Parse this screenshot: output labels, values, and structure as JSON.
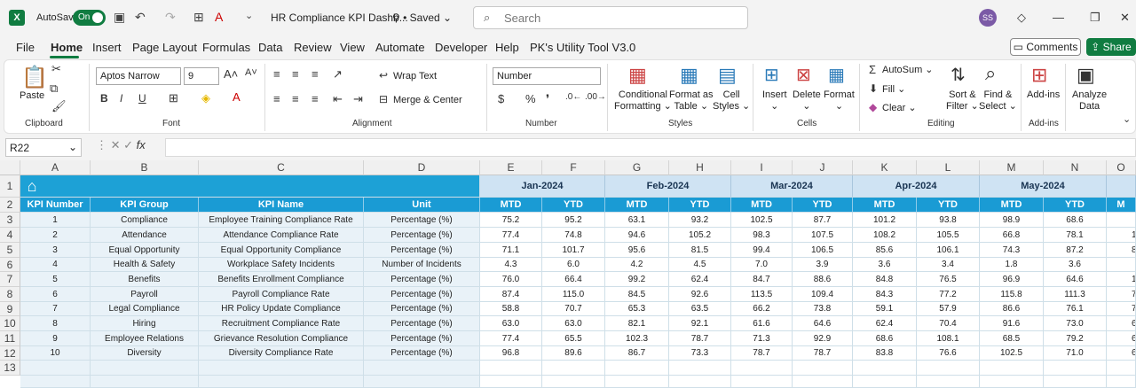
{
  "titlebar": {
    "logo": "X",
    "autosave": "AutoSave",
    "toggle": "On",
    "doc_title": "HR Compliance KPI Dashb...",
    "saved": "Saved",
    "search_placeholder": "Search",
    "avatar": "SS"
  },
  "menu": [
    "File",
    "Home",
    "Insert",
    "Page Layout",
    "Formulas",
    "Data",
    "Review",
    "View",
    "Automate",
    "Developer",
    "Help",
    "PK's Utility Tool V3.0"
  ],
  "buttons": {
    "comments": "Comments",
    "share": "Share"
  },
  "ribbon": {
    "clipboard": {
      "label": "Clipboard",
      "paste": "Paste"
    },
    "font": {
      "label": "Font",
      "font_name": "Aptos Narrow",
      "font_size": "9"
    },
    "alignment": {
      "label": "Alignment",
      "wrap": "Wrap Text",
      "merge": "Merge & Center"
    },
    "number": {
      "label": "Number",
      "format": "Number"
    },
    "styles": {
      "label": "Styles",
      "conditional": [
        "Conditional",
        "Formatting"
      ],
      "format_table": [
        "Format as",
        "Table"
      ],
      "cell_styles": [
        "Cell",
        "Styles"
      ]
    },
    "cells": {
      "label": "Cells",
      "insert": "Insert",
      "delete": "Delete",
      "format": "Format"
    },
    "editing": {
      "label": "Editing",
      "autosum": "AutoSum",
      "fill": "Fill",
      "clear": "Clear",
      "sort": [
        "Sort &",
        "Filter"
      ],
      "find": [
        "Find &",
        "Select"
      ]
    },
    "addins": {
      "label": "Add-ins",
      "addins": "Add-ins"
    },
    "analyze": {
      "label": "Analyze",
      "label2": "Data"
    }
  },
  "formula_bar": {
    "name_box": "R22",
    "fx": "fx",
    "value": ""
  },
  "columns": [
    "A",
    "B",
    "C",
    "D",
    "E",
    "F",
    "G",
    "H",
    "I",
    "J",
    "K",
    "L",
    "M",
    "N",
    "O"
  ],
  "rows": [
    "1",
    "2",
    "3",
    "4",
    "5",
    "6",
    "7",
    "8",
    "9",
    "10",
    "11",
    "12",
    "13"
  ],
  "months": [
    "Jan-2024",
    "Feb-2024",
    "Mar-2024",
    "Apr-2024",
    "May-2024"
  ],
  "headers": {
    "kpi_number": "KPI Number",
    "kpi_group": "KPI Group",
    "kpi_name": "KPI Name",
    "unit": "Unit",
    "mtd": "MTD",
    "ytd": "YTD",
    "partial": "M"
  },
  "table": [
    {
      "n": "1",
      "group": "Compliance",
      "name": "Employee Training Compliance Rate",
      "unit": "Percentage (%)",
      "v": [
        "75.2",
        "95.2",
        "63.1",
        "93.2",
        "102.5",
        "87.7",
        "101.2",
        "93.8",
        "98.9",
        "68.6"
      ],
      "o": ""
    },
    {
      "n": "2",
      "group": "Attendance",
      "name": "Attendance Compliance Rate",
      "unit": "Percentage (%)",
      "v": [
        "77.4",
        "74.8",
        "94.6",
        "105.2",
        "98.3",
        "107.5",
        "108.2",
        "105.5",
        "66.8",
        "78.1"
      ],
      "o": "1"
    },
    {
      "n": "3",
      "group": "Equal Opportunity",
      "name": "Equal Opportunity Compliance",
      "unit": "Percentage (%)",
      "v": [
        "71.1",
        "101.7",
        "95.6",
        "81.5",
        "99.4",
        "106.5",
        "85.6",
        "106.1",
        "74.3",
        "87.2"
      ],
      "o": "8"
    },
    {
      "n": "4",
      "group": "Health & Safety",
      "name": "Workplace Safety Incidents",
      "unit": "Number of Incidents",
      "v": [
        "4.3",
        "6.0",
        "4.2",
        "4.5",
        "7.0",
        "3.9",
        "3.6",
        "3.4",
        "1.8",
        "3.6"
      ],
      "o": ""
    },
    {
      "n": "5",
      "group": "Benefits",
      "name": "Benefits Enrollment Compliance",
      "unit": "Percentage (%)",
      "v": [
        "76.0",
        "66.4",
        "99.2",
        "62.4",
        "84.7",
        "88.6",
        "84.8",
        "76.5",
        "96.9",
        "64.6"
      ],
      "o": "1"
    },
    {
      "n": "6",
      "group": "Payroll",
      "name": "Payroll Compliance Rate",
      "unit": "Percentage (%)",
      "v": [
        "87.4",
        "115.0",
        "84.5",
        "92.6",
        "113.5",
        "109.4",
        "84.3",
        "77.2",
        "115.8",
        "111.3"
      ],
      "o": "7"
    },
    {
      "n": "7",
      "group": "Legal Compliance",
      "name": "HR Policy Update Compliance",
      "unit": "Percentage (%)",
      "v": [
        "58.8",
        "70.7",
        "65.3",
        "63.5",
        "66.2",
        "73.8",
        "59.1",
        "57.9",
        "86.6",
        "76.1"
      ],
      "o": "7"
    },
    {
      "n": "8",
      "group": "Hiring",
      "name": "Recruitment Compliance Rate",
      "unit": "Percentage (%)",
      "v": [
        "63.0",
        "63.0",
        "82.1",
        "92.1",
        "61.6",
        "64.6",
        "62.4",
        "70.4",
        "91.6",
        "73.0"
      ],
      "o": "6"
    },
    {
      "n": "9",
      "group": "Employee Relations",
      "name": "Grievance Resolution Compliance",
      "unit": "Percentage (%)",
      "v": [
        "77.4",
        "65.5",
        "102.3",
        "78.7",
        "71.3",
        "92.9",
        "68.6",
        "108.1",
        "68.5",
        "79.2"
      ],
      "o": "6"
    },
    {
      "n": "10",
      "group": "Diversity",
      "name": "Diversity Compliance Rate",
      "unit": "Percentage (%)",
      "v": [
        "96.8",
        "89.6",
        "86.7",
        "73.3",
        "78.7",
        "78.7",
        "83.8",
        "76.6",
        "102.5",
        "71.0"
      ],
      "o": "6"
    }
  ],
  "colors": {
    "excel_green": "#107c41",
    "header_blue": "#1a9bd4",
    "month_band": "#cfe3f3",
    "light_row": "#e9f2f8"
  }
}
